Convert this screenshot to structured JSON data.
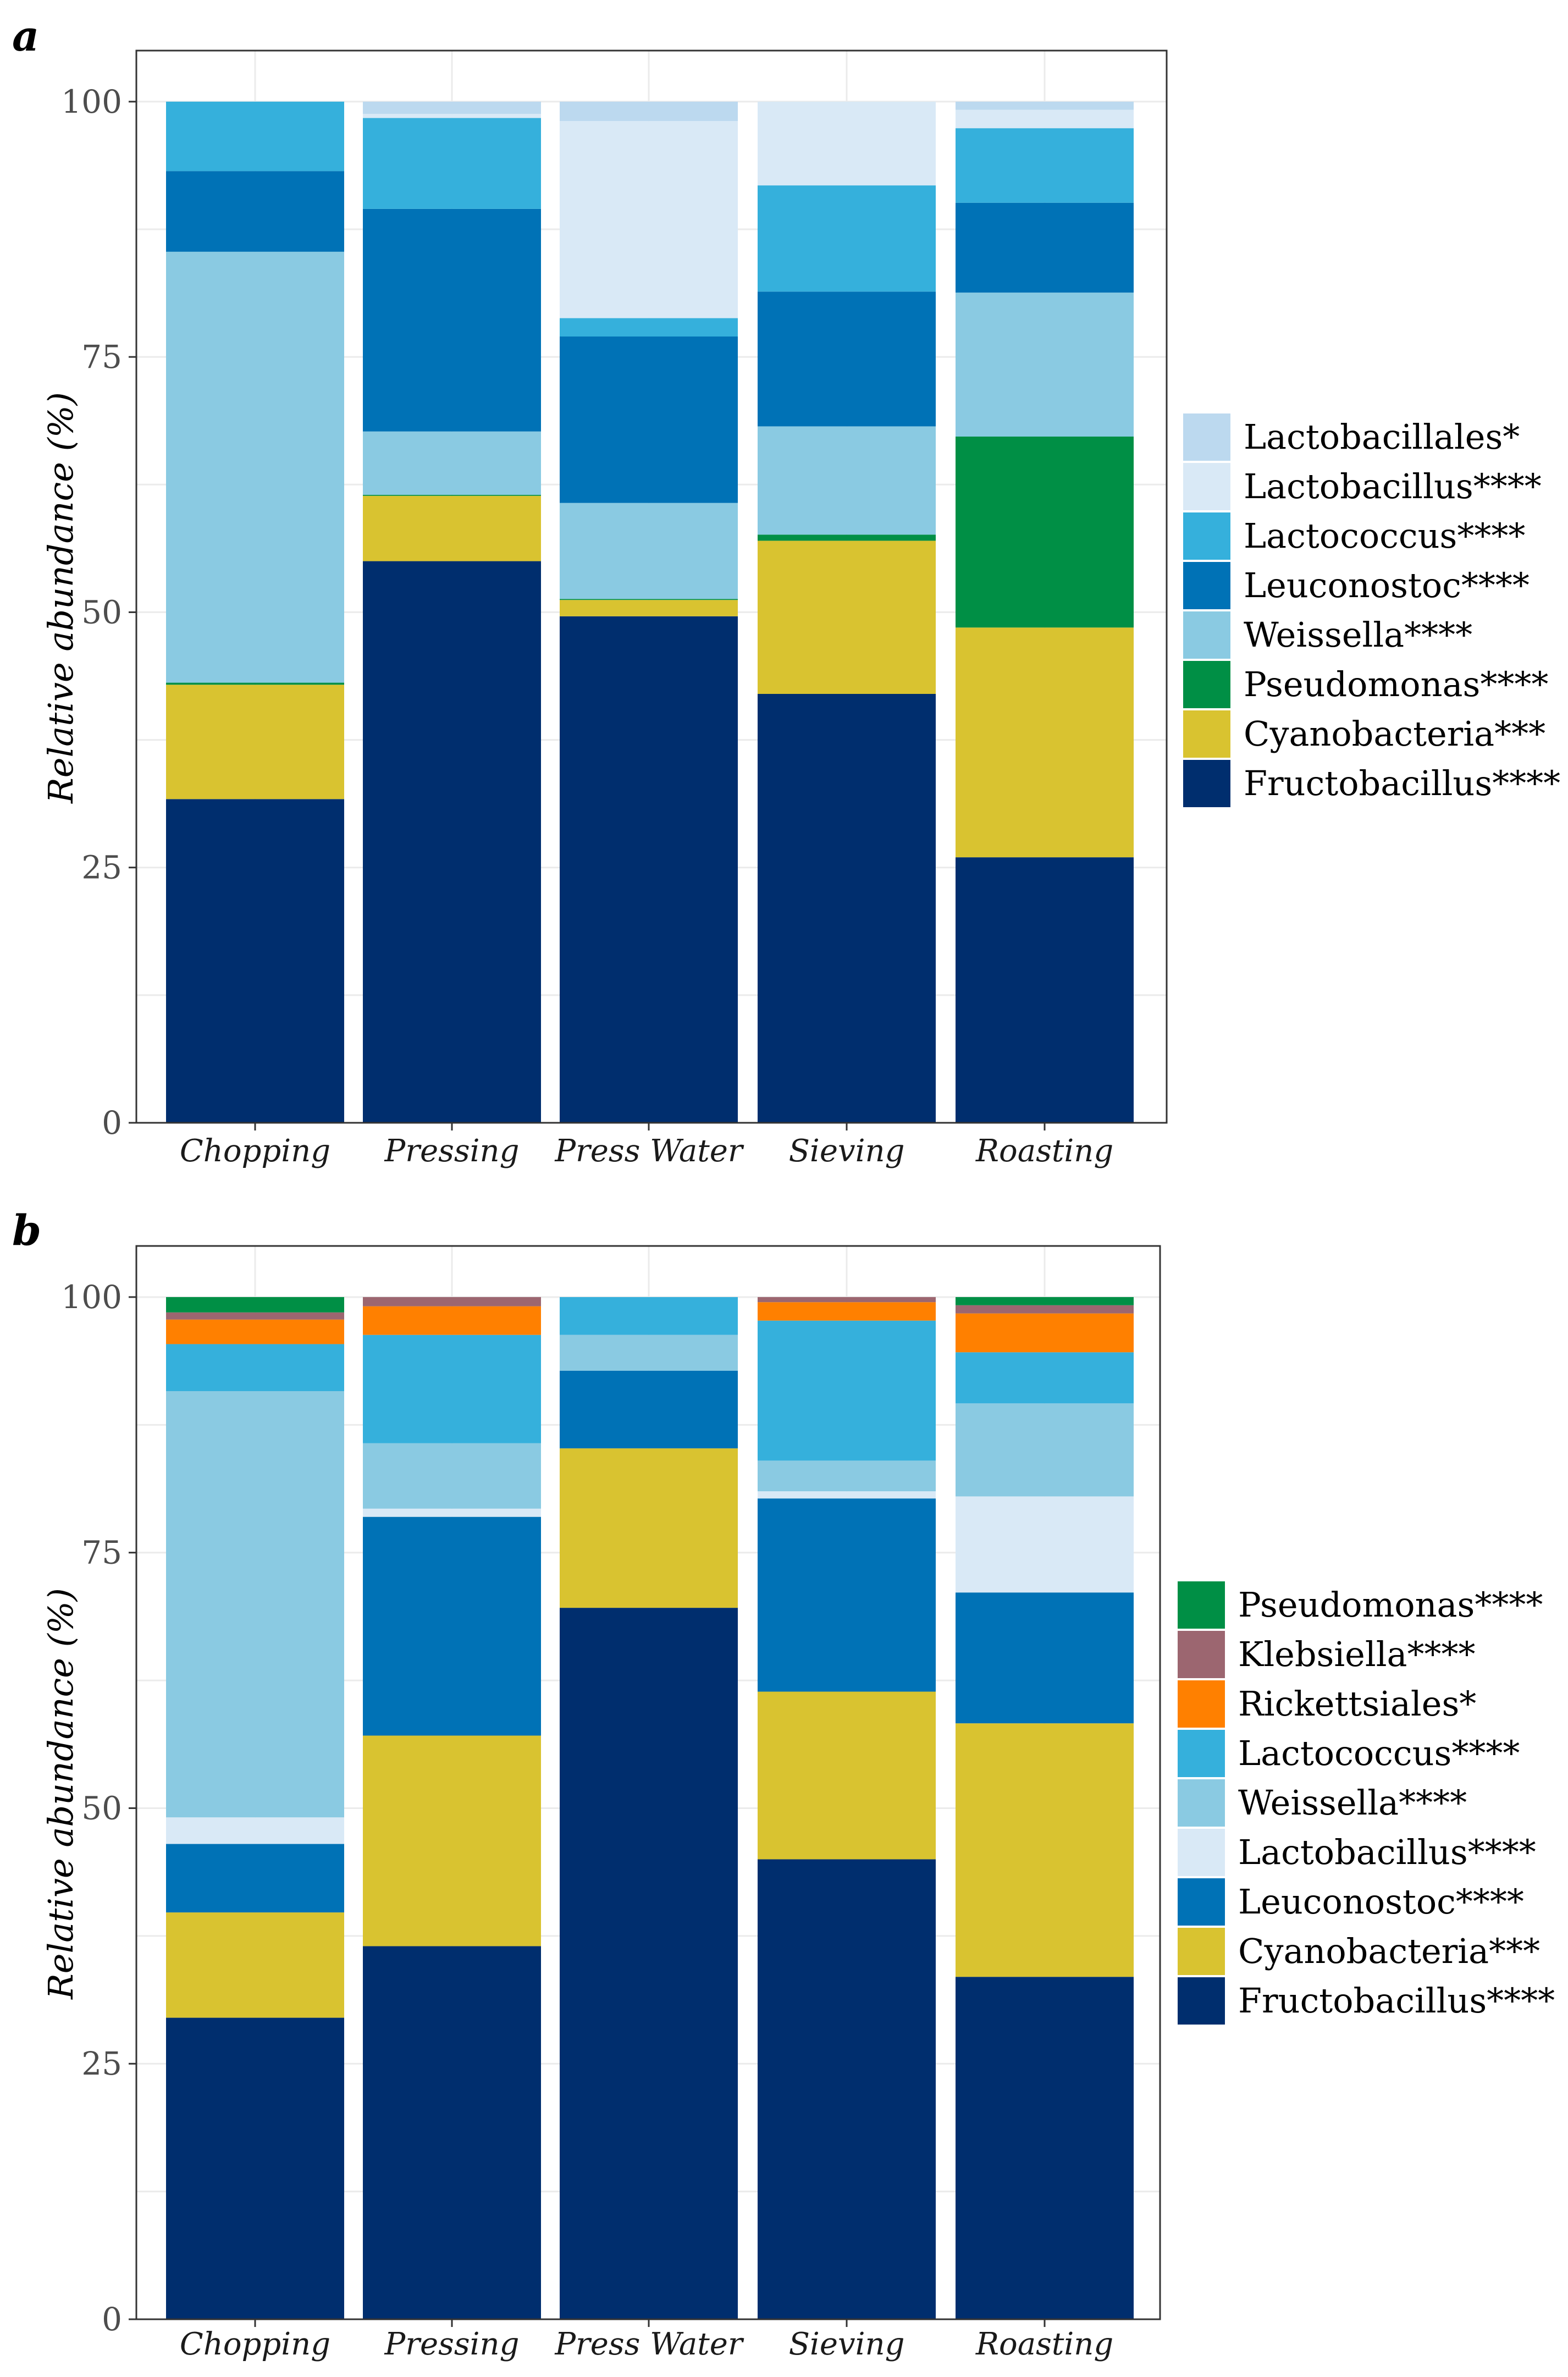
{
  "chart_data": [
    {
      "type": "bar",
      "panel": "a",
      "stacked": true,
      "ylabel": "Relative abundance (%)",
      "xlabel": "",
      "ylim": [
        0,
        105
      ],
      "yticks": [
        "0",
        "25",
        "50",
        "75",
        "100"
      ],
      "grid": true,
      "legend_position": "right",
      "categories": [
        "Chopping",
        "Pressing",
        "Press Water",
        "Sieving",
        "Roasting"
      ],
      "series": [
        {
          "name": "Fructobacillus****",
          "color": "#002e6e",
          "values": [
            31.7,
            55.0,
            49.6,
            42.0,
            26.0
          ]
        },
        {
          "name": "Cyanobacteria***",
          "color": "#d9c330",
          "values": [
            11.2,
            6.4,
            1.6,
            15.0,
            22.5
          ]
        },
        {
          "name": "Pseudomonas****",
          "color": "#008f45",
          "values": [
            0.2,
            0.1,
            0.1,
            0.6,
            18.7
          ]
        },
        {
          "name": "Weissella****",
          "color": "#8acae2",
          "values": [
            42.2,
            6.2,
            9.4,
            10.6,
            14.1
          ]
        },
        {
          "name": "Leuconostoc****",
          "color": "#0072b6",
          "values": [
            7.9,
            21.8,
            16.3,
            13.2,
            8.8
          ]
        },
        {
          "name": "Lactococcus****",
          "color": "#35b0dc",
          "values": [
            6.8,
            8.9,
            1.8,
            10.4,
            7.3
          ]
        },
        {
          "name": "Lactobacillus****",
          "color": "#d9e9f6",
          "values": [
            0.0,
            0.4,
            19.3,
            8.2,
            1.8
          ]
        },
        {
          "name": "Lactobacillales*",
          "color": "#bcd9ef",
          "values": [
            0.0,
            1.2,
            1.9,
            0.0,
            0.8
          ]
        }
      ],
      "legend_order": [
        "Lactobacillales*",
        "Lactobacillus****",
        "Lactococcus****",
        "Leuconostoc****",
        "Weissella****",
        "Pseudomonas****",
        "Cyanobacteria***",
        "Fructobacillus****"
      ]
    },
    {
      "type": "bar",
      "panel": "b",
      "stacked": true,
      "ylabel": "Relative abundance (%)",
      "xlabel": "",
      "ylim": [
        0,
        105
      ],
      "yticks": [
        "0",
        "25",
        "50",
        "75",
        "100"
      ],
      "grid": true,
      "legend_position": "right",
      "categories": [
        "Chopping",
        "Pressing",
        "Press Water",
        "Sieving",
        "Roasting"
      ],
      "series": [
        {
          "name": "Fructobacillus****",
          "color": "#002e6e",
          "values": [
            29.5,
            36.5,
            69.6,
            45.0,
            33.5
          ]
        },
        {
          "name": "Cyanobacteria***",
          "color": "#d9c330",
          "values": [
            10.3,
            20.6,
            15.6,
            16.4,
            24.8
          ]
        },
        {
          "name": "Leuconostoc****",
          "color": "#0072b6",
          "values": [
            6.7,
            21.4,
            7.6,
            18.9,
            12.8
          ]
        },
        {
          "name": "Lactobacillus****",
          "color": "#d9e9f6",
          "values": [
            2.6,
            0.8,
            0.0,
            0.7,
            9.4
          ]
        },
        {
          "name": "Weissella****",
          "color": "#8acae2",
          "values": [
            41.7,
            6.4,
            3.5,
            3.0,
            9.1
          ]
        },
        {
          "name": "Lactococcus****",
          "color": "#35b0dc",
          "values": [
            4.6,
            10.6,
            3.7,
            13.7,
            5.0
          ]
        },
        {
          "name": "Rickettsiales*",
          "color": "#ff8000",
          "values": [
            2.4,
            2.8,
            0.0,
            1.8,
            3.8
          ]
        },
        {
          "name": "Klebsiella****",
          "color": "#9c6670",
          "values": [
            0.7,
            0.9,
            0.0,
            0.5,
            0.8
          ]
        },
        {
          "name": "Pseudomonas****",
          "color": "#008f45",
          "values": [
            1.5,
            0.0,
            0.0,
            0.0,
            0.8
          ]
        }
      ],
      "legend_order": [
        "Pseudomonas****",
        "Klebsiella****",
        "Rickettsiales*",
        "Lactococcus****",
        "Weissella****",
        "Lactobacillus****",
        "Leuconostoc****",
        "Cyanobacteria***",
        "Fructobacillus****"
      ]
    }
  ]
}
